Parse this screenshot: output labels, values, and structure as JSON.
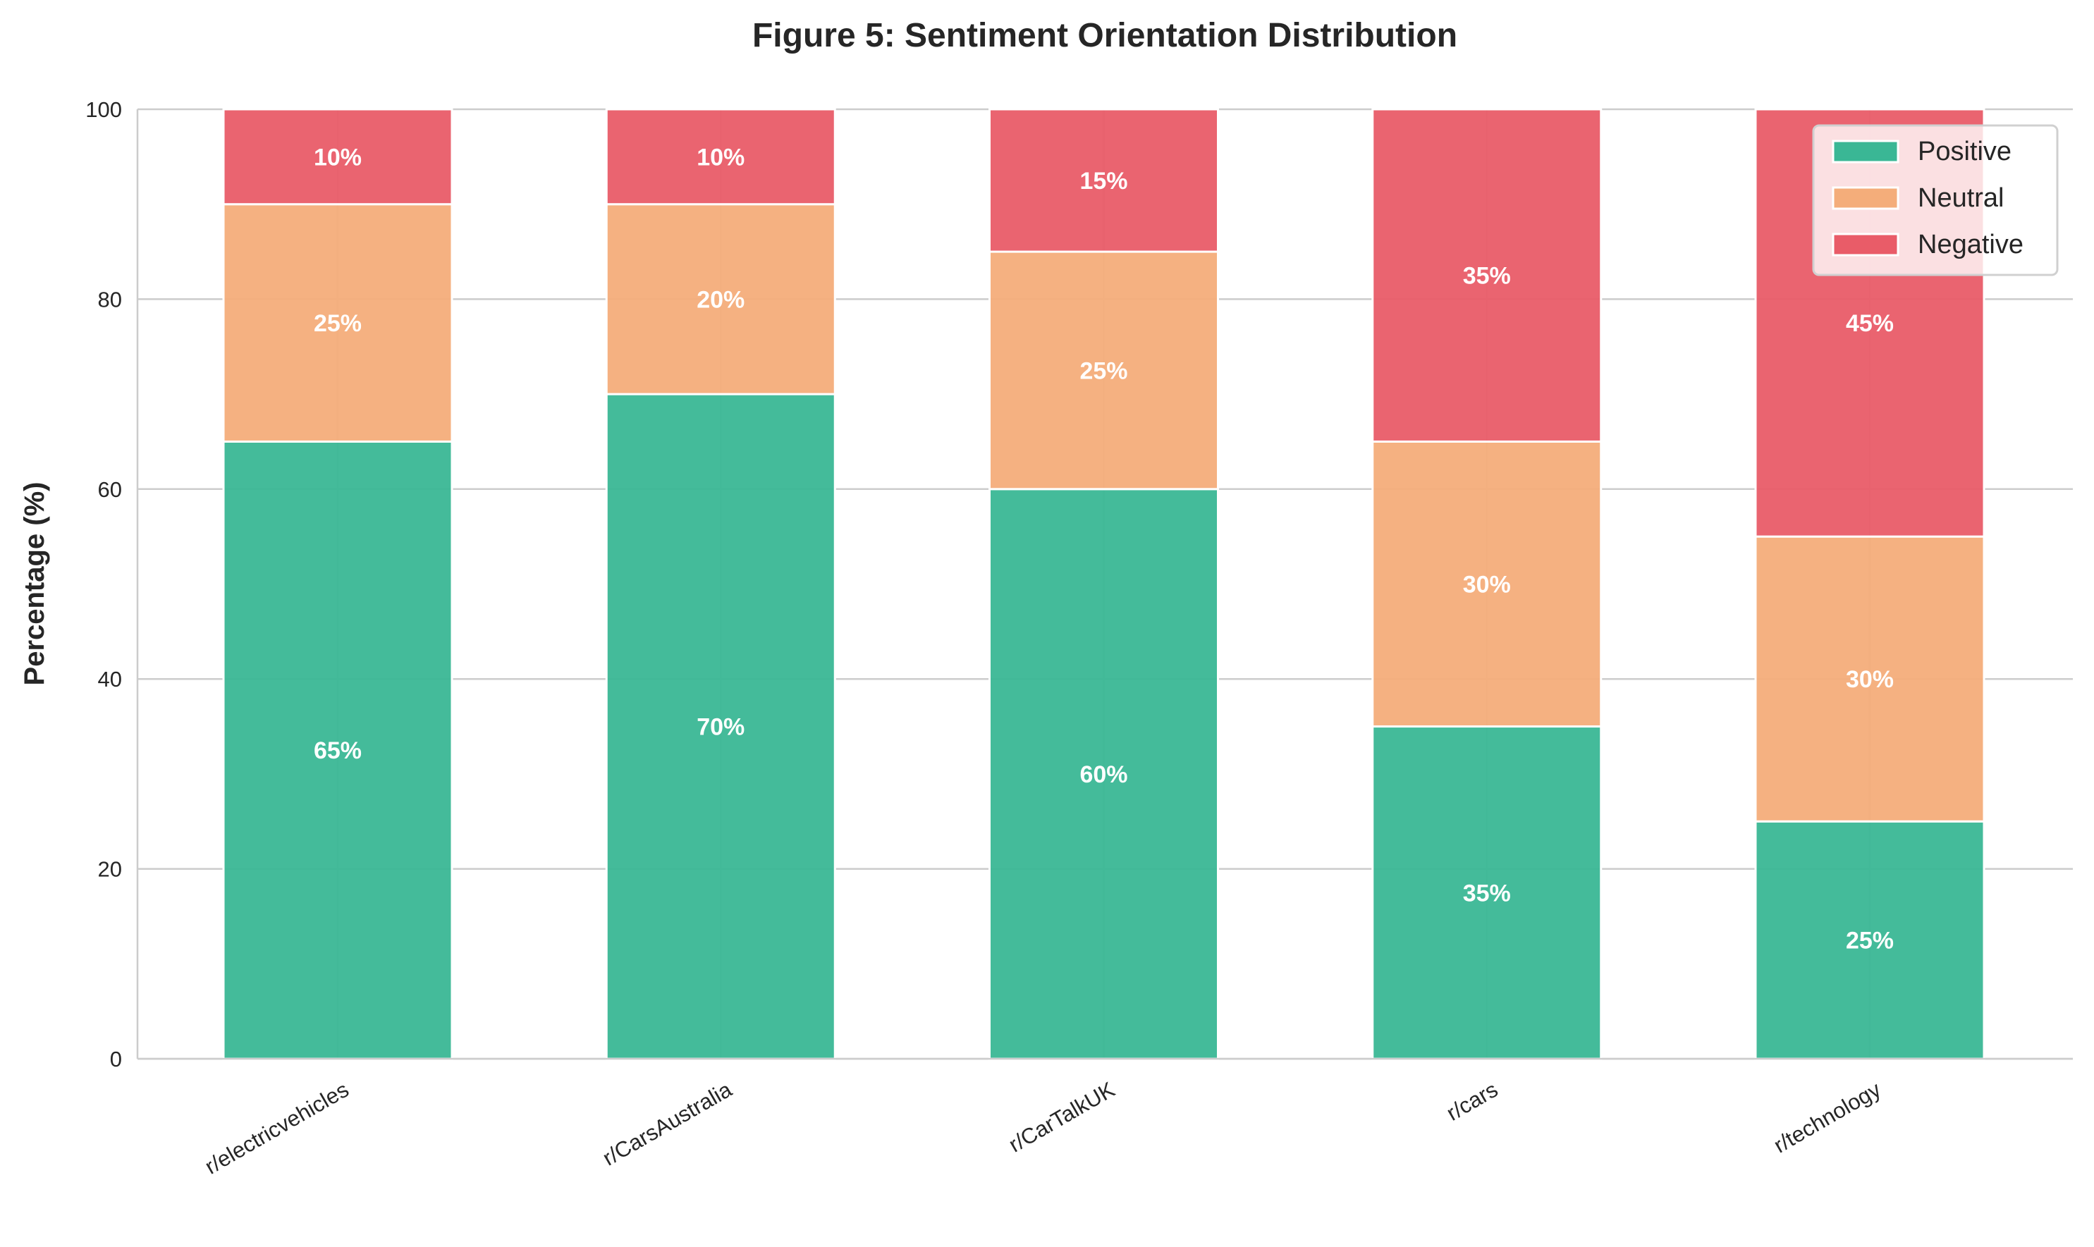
{
  "chart_data": {
    "type": "bar",
    "stacked": true,
    "title": "Figure 5: Sentiment Orientation Distribution",
    "xlabel": "",
    "ylabel": "Percentage (%)",
    "ylim": [
      0,
      100
    ],
    "yticks": [
      "0",
      "20",
      "40",
      "60",
      "80",
      "100"
    ],
    "grid": true,
    "legend_position": "top-right",
    "categories": [
      "r/electricvehicles",
      "r/CarsAustralia",
      "r/CarTalkUK",
      "r/cars",
      "r/technology"
    ],
    "series": [
      {
        "name": "Positive",
        "color": "#3ab795",
        "values": [
          65,
          70,
          60,
          35,
          25
        ]
      },
      {
        "name": "Neutral",
        "color": "#f4ad7a",
        "values": [
          25,
          20,
          25,
          30,
          30
        ]
      },
      {
        "name": "Negative",
        "color": "#e95c68",
        "values": [
          10,
          10,
          15,
          35,
          45
        ]
      }
    ],
    "data_label_suffix": "%"
  }
}
